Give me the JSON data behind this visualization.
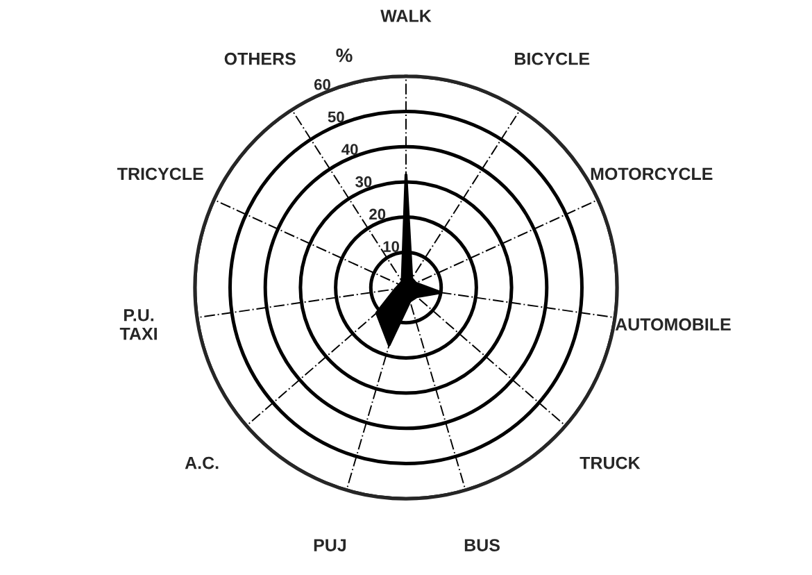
{
  "chart_data": {
    "type": "radar",
    "ylabel": "%",
    "categories": [
      "WALK",
      "BICYCLE",
      "MOTORCYCLE",
      "AUTOMOBILE",
      "TRUCK",
      "BUS",
      "PUJ",
      "A.C.",
      "P.U.\nTAXI",
      "TRICYCLE",
      "OTHERS"
    ],
    "series": [
      {
        "color": "#000000",
        "values": [
          32,
          3,
          3,
          10,
          4,
          4,
          17,
          11,
          3,
          2,
          2
        ]
      }
    ],
    "ylim": [
      0,
      60
    ],
    "yticks": [
      10,
      20,
      30,
      40,
      50,
      60
    ],
    "grid": true,
    "legend": false
  }
}
